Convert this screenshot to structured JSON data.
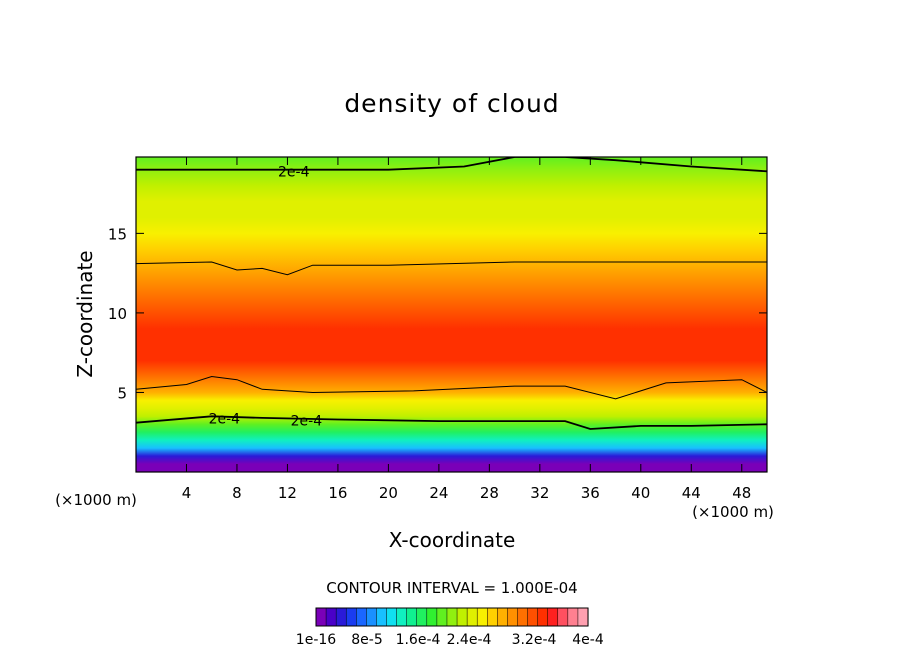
{
  "chart_data": {
    "type": "heatmap",
    "title": "density of cloud",
    "xlabel": "X-coordinate",
    "ylabel": "Z-coordinate",
    "x_unit": "(×1000 m)",
    "y_unit": "(×1000 m)",
    "xlim": [
      0,
      50
    ],
    "ylim": [
      0,
      19.8
    ],
    "x_ticks": [
      4,
      8,
      12,
      16,
      20,
      24,
      28,
      32,
      36,
      40,
      44,
      48
    ],
    "y_ticks": [
      5,
      10,
      15
    ],
    "contour_interval_label": "CONTOUR INTERVAL = 1.000E-04",
    "contour_labels": [
      "2e-4",
      "2e-4",
      "2e-4"
    ],
    "colorbar": {
      "min": 1e-16,
      "max": 0.0004,
      "tick_labels": [
        "1e-16",
        "8e-5",
        "1.6e-4",
        "2.4e-4",
        "3.2e-4",
        "4e-4"
      ],
      "colors": [
        "#7a00b8",
        "#4a00c8",
        "#2a1ad8",
        "#1a3cf0",
        "#1a66ff",
        "#1a90ff",
        "#18c0ff",
        "#10e0f0",
        "#10f0c0",
        "#10f090",
        "#20f060",
        "#30f030",
        "#60f020",
        "#90f010",
        "#c0f000",
        "#e0f000",
        "#f8f000",
        "#ffd000",
        "#ffb000",
        "#ff9000",
        "#ff7000",
        "#ff5000",
        "#ff3000",
        "#ff2020",
        "#ff5060",
        "#ff8090",
        "#ffa0b0"
      ]
    },
    "profile_z": [
      0,
      0.5,
      1.0,
      1.5,
      2.0,
      2.5,
      3.0,
      3.5,
      4.0,
      4.5,
      5.0,
      5.5,
      6.0,
      7.0,
      8.0,
      9.0,
      10.0,
      11.0,
      12.0,
      13.0,
      14.0,
      15.0,
      16.0,
      17.0,
      18.0,
      19.0,
      19.8
    ],
    "profile_density": [
      1e-16,
      1e-16,
      4e-05,
      9e-05,
      0.00013,
      0.00016,
      0.00019,
      0.00021,
      0.00023,
      0.00025,
      0.00027,
      0.00029,
      0.00031,
      0.00033,
      0.00034,
      0.00033,
      0.00032,
      0.00031,
      0.00029,
      0.00027,
      0.000255,
      0.000245,
      0.000235,
      0.000225,
      0.00021,
      0.000195,
      0.000185
    ],
    "contour_2e4_upper_z": [
      [
        0,
        19.0
      ],
      [
        10,
        19.0
      ],
      [
        20,
        19.0
      ],
      [
        26,
        19.2
      ],
      [
        30,
        19.8
      ],
      [
        34,
        19.8
      ],
      [
        38,
        19.6
      ],
      [
        44,
        19.2
      ],
      [
        50,
        18.9
      ]
    ],
    "contour_2e4_lower_z": [
      [
        0,
        3.1
      ],
      [
        6,
        3.5
      ],
      [
        10,
        3.4
      ],
      [
        16,
        3.3
      ],
      [
        24,
        3.2
      ],
      [
        34,
        3.2
      ],
      [
        36,
        2.7
      ],
      [
        40,
        2.9
      ],
      [
        44,
        2.9
      ],
      [
        50,
        3.0
      ]
    ],
    "contour_upper_band_z": [
      [
        0,
        13.1
      ],
      [
        6,
        13.2
      ],
      [
        8,
        12.7
      ],
      [
        10,
        12.8
      ],
      [
        12,
        12.4
      ],
      [
        14,
        13.0
      ],
      [
        20,
        13.0
      ],
      [
        30,
        13.2
      ],
      [
        40,
        13.2
      ],
      [
        50,
        13.2
      ]
    ],
    "contour_lower_band_z": [
      [
        0,
        5.2
      ],
      [
        4,
        5.5
      ],
      [
        6,
        6.0
      ],
      [
        8,
        5.8
      ],
      [
        10,
        5.2
      ],
      [
        14,
        5.0
      ],
      [
        22,
        5.1
      ],
      [
        30,
        5.4
      ],
      [
        34,
        5.4
      ],
      [
        38,
        4.6
      ],
      [
        42,
        5.6
      ],
      [
        48,
        5.8
      ],
      [
        50,
        5.0
      ]
    ]
  }
}
